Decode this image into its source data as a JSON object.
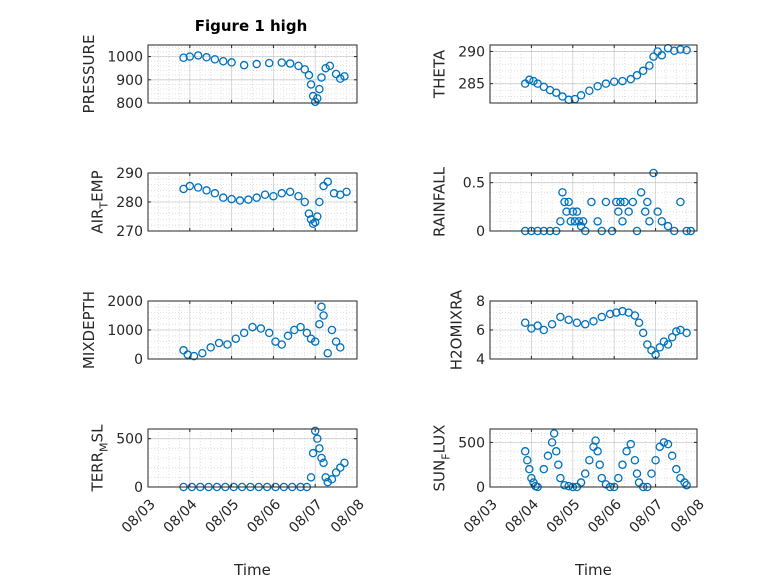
{
  "figure": {
    "title": "Figure 1 high"
  },
  "colors": {
    "marker": "#0072BD",
    "axis": "#262626",
    "grid": "#b0b0b0",
    "minor_grid": "#d9d9d9"
  },
  "chart_data": [
    {
      "id": "pressure",
      "type": "scatter",
      "xlabel": "",
      "ylabel": "PRESSURE",
      "ylabel_parts": [
        "PRESSURE"
      ],
      "xlim": [
        0,
        5
      ],
      "ylim": [
        800,
        1050
      ],
      "yticks": [
        800,
        900,
        1000
      ],
      "ytick_labels": [
        "800",
        "900",
        "1000"
      ],
      "xticks": [
        0,
        1,
        2,
        3,
        4,
        5
      ],
      "xtick_labels": [],
      "x": [
        0.85,
        1.0,
        1.2,
        1.4,
        1.6,
        1.8,
        2.0,
        2.3,
        2.6,
        2.9,
        3.2,
        3.4,
        3.6,
        3.75,
        3.85,
        3.9,
        3.95,
        4.0,
        4.05,
        4.1,
        4.15,
        4.25,
        4.35,
        4.5,
        4.6,
        4.7
      ],
      "y": [
        995,
        1000,
        1005,
        997,
        988,
        980,
        975,
        963,
        968,
        972,
        974,
        970,
        960,
        945,
        920,
        880,
        830,
        805,
        820,
        860,
        910,
        950,
        960,
        925,
        905,
        915
      ]
    },
    {
      "id": "theta",
      "type": "scatter",
      "xlabel": "",
      "ylabel": "THETA",
      "ylabel_parts": [
        "THETA"
      ],
      "xlim": [
        0,
        5
      ],
      "ylim": [
        282,
        291
      ],
      "yticks": [
        285,
        290
      ],
      "ytick_labels": [
        "285",
        "290"
      ],
      "xticks": [
        0,
        1,
        2,
        3,
        4,
        5
      ],
      "xtick_labels": [],
      "x": [
        0.85,
        0.95,
        1.05,
        1.15,
        1.3,
        1.45,
        1.6,
        1.75,
        1.9,
        2.05,
        2.2,
        2.4,
        2.6,
        2.8,
        3.0,
        3.2,
        3.4,
        3.55,
        3.7,
        3.85,
        3.95,
        4.05,
        4.15,
        4.3,
        4.45,
        4.6,
        4.75
      ],
      "y": [
        285.0,
        285.6,
        285.4,
        285.0,
        284.5,
        284.0,
        283.6,
        283.0,
        282.5,
        282.6,
        283.2,
        283.9,
        284.6,
        285.0,
        285.3,
        285.4,
        285.7,
        286.3,
        287.0,
        287.8,
        289.2,
        290.0,
        289.4,
        290.5,
        290.1,
        290.3,
        290.2
      ]
    },
    {
      "id": "air_temp",
      "type": "scatter",
      "xlabel": "",
      "ylabel": "AIR_TEMP",
      "ylabel_parts": [
        "AIR",
        "T",
        "EMP"
      ],
      "xlim": [
        0,
        5
      ],
      "ylim": [
        270,
        290
      ],
      "yticks": [
        270,
        280,
        290
      ],
      "ytick_labels": [
        "270",
        "280",
        "290"
      ],
      "xticks": [
        0,
        1,
        2,
        3,
        4,
        5
      ],
      "xtick_labels": [],
      "x": [
        0.85,
        1.0,
        1.2,
        1.4,
        1.6,
        1.8,
        2.0,
        2.2,
        2.4,
        2.6,
        2.8,
        3.0,
        3.2,
        3.4,
        3.6,
        3.75,
        3.85,
        3.9,
        3.95,
        4.0,
        4.05,
        4.1,
        4.2,
        4.3,
        4.45,
        4.6,
        4.75
      ],
      "y": [
        284.5,
        285.5,
        285.0,
        284.0,
        283.0,
        281.5,
        281.0,
        280.5,
        280.8,
        281.5,
        282.5,
        282.0,
        283.0,
        283.5,
        282.0,
        280.0,
        276.0,
        274.0,
        272.5,
        273.0,
        275.0,
        280.0,
        285.5,
        287.0,
        283.0,
        282.5,
        283.5
      ]
    },
    {
      "id": "rainfall",
      "type": "scatter",
      "xlabel": "",
      "ylabel": "RAINFALL",
      "ylabel_parts": [
        "RAINFALL"
      ],
      "xlim": [
        0,
        5
      ],
      "ylim": [
        0,
        0.6
      ],
      "yticks": [
        0,
        0.5
      ],
      "ytick_labels": [
        "0",
        "0.5"
      ],
      "xticks": [
        0,
        1,
        2,
        3,
        4,
        5
      ],
      "xtick_labels": [],
      "x": [
        0.85,
        1.0,
        1.15,
        1.3,
        1.45,
        1.6,
        1.7,
        1.75,
        1.8,
        1.85,
        1.9,
        1.95,
        2.0,
        2.05,
        2.1,
        2.15,
        2.2,
        2.25,
        2.3,
        2.45,
        2.6,
        2.7,
        2.8,
        2.95,
        3.05,
        3.1,
        3.15,
        3.2,
        3.25,
        3.35,
        3.45,
        3.55,
        3.65,
        3.75,
        3.8,
        3.85,
        3.95,
        4.05,
        4.15,
        4.3,
        4.45,
        4.6,
        4.75,
        4.85
      ],
      "y": [
        0,
        0,
        0,
        0,
        0,
        0,
        0.1,
        0.4,
        0.3,
        0.2,
        0.3,
        0.1,
        0.2,
        0.1,
        0.2,
        0.1,
        0.05,
        0.1,
        0,
        0.3,
        0.1,
        0,
        0.3,
        0,
        0.3,
        0.2,
        0.3,
        0.1,
        0.3,
        0.2,
        0.3,
        0,
        0.4,
        0.2,
        0.3,
        0.1,
        0.6,
        0.2,
        0.1,
        0.05,
        0,
        0.3,
        0,
        0
      ]
    },
    {
      "id": "mixdepth",
      "type": "scatter",
      "xlabel": "",
      "ylabel": "MIXDEPTH",
      "ylabel_parts": [
        "MIXDEPTH"
      ],
      "xlim": [
        0,
        5
      ],
      "ylim": [
        0,
        2000
      ],
      "yticks": [
        0,
        1000,
        2000
      ],
      "ytick_labels": [
        "0",
        "1000",
        "2000"
      ],
      "xticks": [
        0,
        1,
        2,
        3,
        4,
        5
      ],
      "xtick_labels": [],
      "x": [
        0.85,
        0.95,
        1.1,
        1.3,
        1.5,
        1.7,
        1.9,
        2.1,
        2.3,
        2.5,
        2.7,
        2.9,
        3.05,
        3.2,
        3.35,
        3.5,
        3.65,
        3.8,
        3.9,
        4.0,
        4.1,
        4.15,
        4.2,
        4.3,
        4.4,
        4.5,
        4.6
      ],
      "y": [
        300,
        150,
        100,
        200,
        400,
        550,
        500,
        700,
        900,
        1100,
        1050,
        900,
        600,
        500,
        800,
        1000,
        1100,
        900,
        700,
        600,
        1200,
        1800,
        1500,
        200,
        1000,
        600,
        400
      ]
    },
    {
      "id": "h2omixra",
      "type": "scatter",
      "xlabel": "",
      "ylabel": "H2OMIXRA",
      "ylabel_parts": [
        "H2OMIXRA"
      ],
      "xlim": [
        0,
        5
      ],
      "ylim": [
        4,
        8
      ],
      "yticks": [
        4,
        6,
        8
      ],
      "ytick_labels": [
        "4",
        "6",
        "8"
      ],
      "xticks": [
        0,
        1,
        2,
        3,
        4,
        5
      ],
      "xtick_labels": [],
      "x": [
        0.85,
        1.0,
        1.15,
        1.3,
        1.5,
        1.7,
        1.9,
        2.1,
        2.3,
        2.5,
        2.7,
        2.9,
        3.05,
        3.2,
        3.35,
        3.5,
        3.6,
        3.7,
        3.8,
        3.9,
        4.0,
        4.1,
        4.2,
        4.3,
        4.4,
        4.5,
        4.6,
        4.75
      ],
      "y": [
        6.5,
        6.1,
        6.3,
        6.0,
        6.4,
        6.9,
        6.7,
        6.5,
        6.4,
        6.6,
        6.9,
        7.1,
        7.2,
        7.3,
        7.2,
        7.0,
        6.5,
        5.8,
        5.0,
        4.6,
        4.3,
        4.8,
        5.2,
        5.0,
        5.5,
        5.9,
        6.0,
        5.8
      ]
    },
    {
      "id": "terr_msl",
      "type": "scatter",
      "xlabel": "Time",
      "ylabel": "TERR_MSL",
      "ylabel_parts": [
        "TERR",
        "M",
        "SL"
      ],
      "xlim": [
        0,
        5
      ],
      "ylim": [
        0,
        600
      ],
      "yticks": [
        0,
        500
      ],
      "ytick_labels": [
        "0",
        "500"
      ],
      "xticks": [
        0,
        1,
        2,
        3,
        4,
        5
      ],
      "xtick_labels": [
        "08/03",
        "08/04",
        "08/05",
        "08/06",
        "08/07",
        "08/08"
      ],
      "x": [
        0.85,
        1.05,
        1.25,
        1.45,
        1.65,
        1.85,
        2.05,
        2.25,
        2.45,
        2.65,
        2.85,
        3.05,
        3.25,
        3.45,
        3.65,
        3.8,
        3.9,
        3.95,
        4.0,
        4.05,
        4.1,
        4.15,
        4.2,
        4.25,
        4.3,
        4.4,
        4.5,
        4.6,
        4.7
      ],
      "y": [
        0,
        0,
        0,
        0,
        0,
        0,
        0,
        0,
        0,
        0,
        0,
        0,
        0,
        0,
        0,
        0,
        100,
        350,
        580,
        500,
        400,
        300,
        250,
        100,
        50,
        80,
        150,
        200,
        250
      ]
    },
    {
      "id": "sun_flux",
      "type": "scatter",
      "xlabel": "Time",
      "ylabel": "SUN_FLUX",
      "ylabel_parts": [
        "SUN",
        "F",
        "LUX"
      ],
      "xlim": [
        0,
        5
      ],
      "ylim": [
        0,
        650
      ],
      "yticks": [
        0,
        500
      ],
      "ytick_labels": [
        "0",
        "500"
      ],
      "xticks": [
        0,
        1,
        2,
        3,
        4,
        5
      ],
      "xtick_labels": [
        "08/03",
        "08/04",
        "08/05",
        "08/06",
        "08/07",
        "08/08"
      ],
      "x": [
        0.85,
        0.9,
        0.95,
        1.0,
        1.05,
        1.1,
        1.15,
        1.3,
        1.4,
        1.5,
        1.55,
        1.6,
        1.65,
        1.7,
        1.8,
        1.9,
        2.0,
        2.1,
        2.2,
        2.3,
        2.4,
        2.5,
        2.55,
        2.6,
        2.65,
        2.7,
        2.8,
        2.9,
        3.0,
        3.1,
        3.2,
        3.3,
        3.4,
        3.5,
        3.55,
        3.6,
        3.7,
        3.8,
        3.9,
        4.0,
        4.1,
        4.2,
        4.3,
        4.4,
        4.5,
        4.6,
        4.7,
        4.75
      ],
      "y": [
        400,
        300,
        200,
        100,
        50,
        10,
        0,
        200,
        350,
        500,
        600,
        400,
        250,
        100,
        20,
        10,
        0,
        0,
        50,
        150,
        300,
        450,
        520,
        400,
        250,
        100,
        30,
        0,
        0,
        100,
        250,
        400,
        480,
        300,
        150,
        50,
        0,
        0,
        150,
        300,
        450,
        500,
        480,
        350,
        200,
        100,
        50,
        20
      ]
    }
  ]
}
